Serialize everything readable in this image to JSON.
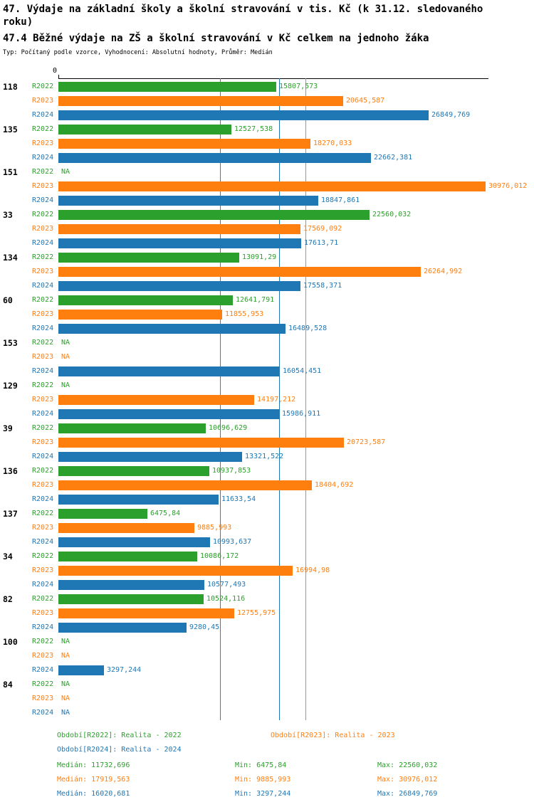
{
  "header": {
    "title": "47. Výdaje na základní školy a školní stravování v tis. Kč (k 31.12. sledovaného roku)",
    "subtitle": "47.4 Běžné výdaje na ZŠ a školní stravování v Kč celkem na jednoho žáka",
    "meta": "Typ: Počítaný podle vzorce, Vyhodnocení: Absolutní hodnoty, Průměr: Medián"
  },
  "chart_data": {
    "type": "bar",
    "orientation": "horizontal",
    "title": "47.4 Běžné výdaje na ZŠ a školní stravování v Kč celkem na jednoho žáka",
    "x_axis": {
      "origin_label": "0",
      "grid": false
    },
    "series_order": [
      "R2022",
      "R2023",
      "R2024"
    ],
    "series_colors": {
      "R2022": "#2ca02c",
      "R2023": "#ff7f0e",
      "R2024": "#1f77b4"
    },
    "na_text": "NA",
    "groups": [
      {
        "label": "118",
        "values": {
          "R2022": "15807,573",
          "R2023": "20645,587",
          "R2024": "26849,769"
        }
      },
      {
        "label": "135",
        "values": {
          "R2022": "12527,538",
          "R2023": "18270,033",
          "R2024": "22662,381"
        }
      },
      {
        "label": "151",
        "values": {
          "R2022": "NA",
          "R2023": "30976,012",
          "R2024": "18847,861"
        }
      },
      {
        "label": "33",
        "values": {
          "R2022": "22560,032",
          "R2023": "17569,092",
          "R2024": "17613,71"
        }
      },
      {
        "label": "134",
        "values": {
          "R2022": "13091,29",
          "R2023": "26264,992",
          "R2024": "17558,371"
        }
      },
      {
        "label": "60",
        "values": {
          "R2022": "12641,791",
          "R2023": "11855,953",
          "R2024": "16489,528"
        }
      },
      {
        "label": "153",
        "values": {
          "R2022": "NA",
          "R2023": "NA",
          "R2024": "16054,451"
        }
      },
      {
        "label": "129",
        "values": {
          "R2022": "NA",
          "R2023": "14197,212",
          "R2024": "15986,911"
        }
      },
      {
        "label": "39",
        "values": {
          "R2022": "10696,629",
          "R2023": "20723,587",
          "R2024": "13321,522"
        }
      },
      {
        "label": "136",
        "values": {
          "R2022": "10937,853",
          "R2023": "18404,692",
          "R2024": "11633,54"
        }
      },
      {
        "label": "137",
        "values": {
          "R2022": "6475,84",
          "R2023": "9885,993",
          "R2024": "10993,637"
        }
      },
      {
        "label": "34",
        "values": {
          "R2022": "10086,172",
          "R2023": "16994,98",
          "R2024": "10577,493"
        }
      },
      {
        "label": "82",
        "values": {
          "R2022": "10524,116",
          "R2023": "12755,975",
          "R2024": "9280,45"
        }
      },
      {
        "label": "100",
        "values": {
          "R2022": "NA",
          "R2023": "NA",
          "R2024": "3297,244"
        }
      },
      {
        "label": "84",
        "values": {
          "R2022": "NA",
          "R2023": "NA",
          "R2024": "NA"
        }
      }
    ],
    "median_lines": {
      "R2022": 11732.696,
      "R2023": 17919.563,
      "R2024": 16020.681
    }
  },
  "legend": {
    "periods": [
      {
        "series": "R2022",
        "text": "Období[R2022]: Realita - 2022"
      },
      {
        "series": "R2023",
        "text": "Období[R2023]: Realita - 2023"
      },
      {
        "series": "R2024",
        "text": "Období[R2024]: Realita - 2024"
      }
    ],
    "stats": [
      {
        "series": "R2022",
        "median": "Medián: 11732,696",
        "min": "Min: 6475,84",
        "max": "Max: 22560,032"
      },
      {
        "series": "R2023",
        "median": "Medián: 17919,563",
        "min": "Min: 9885,993",
        "max": "Max: 30976,012"
      },
      {
        "series": "R2024",
        "median": "Medián: 16020,681",
        "min": "Min: 3297,244",
        "max": "Max: 26849,769"
      }
    ]
  }
}
